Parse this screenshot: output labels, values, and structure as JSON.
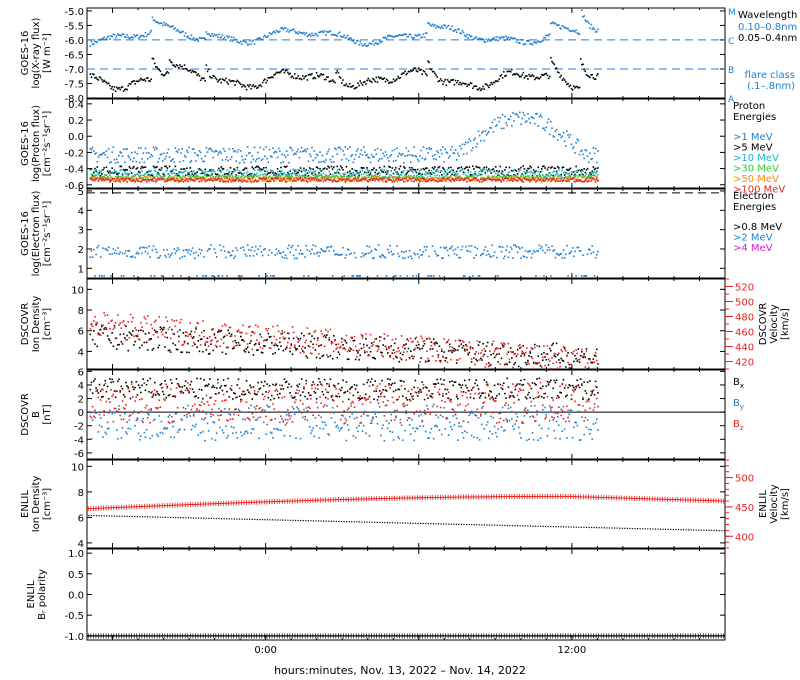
{
  "colors": {
    "black": "#000000",
    "blue": "#1f7fd0",
    "cyan": "#13b7c9",
    "green": "#33cc33",
    "orange": "#ff8800",
    "red": "#e8221c",
    "magenta": "#d61cd6"
  },
  "x_axis": {
    "range_hours": [
      -7,
      18
    ],
    "ticks": [
      {
        "h": 0,
        "label": "0:00"
      },
      {
        "h": 12,
        "label": "12:00"
      }
    ],
    "title": "hours:minutes, Nov. 13, 2022 – Nov. 14, 2022",
    "data_end_hours": 13.0
  },
  "chart_data": [
    {
      "id": "xray",
      "type": "scatter",
      "ylabel_lines": [
        "GOES-16",
        "log(X-ray flux)",
        "[W m⁻²]"
      ],
      "ylim": [
        -8.0,
        -4.9
      ],
      "yticks": [
        "-5.0",
        "-5.5",
        "-6.0",
        "-6.5",
        "-7.0",
        "-7.5",
        "-8.0"
      ],
      "ytick_values": [
        -5.0,
        -5.5,
        -6.0,
        -6.5,
        -7.0,
        -7.5,
        -8.0
      ],
      "flare_lines": [
        {
          "value": -6.0,
          "label": "C"
        },
        {
          "value": -7.0,
          "label": "B"
        }
      ],
      "flare_marks": [
        {
          "value": -5.0,
          "label": "M"
        },
        {
          "value": -8.0,
          "label": "A"
        }
      ],
      "legend": {
        "title": "Wavelength",
        "entries": [
          {
            "text": "0.10–0.8nm",
            "color": "#1f7fd0"
          },
          {
            "text": "0.05–0.4nm",
            "color": "#000000"
          }
        ],
        "flare_class": [
          "flare class",
          "(.1–.8nm)"
        ]
      },
      "series": [
        {
          "name": "0.10–0.8nm",
          "color": "#1f7fd0",
          "base": -5.85,
          "noise": 0.08,
          "bursts": [
            [
              -4.5,
              0.55
            ],
            [
              -2.4,
              0.35
            ],
            [
              6.3,
              0.4
            ],
            [
              11.1,
              0.45
            ],
            [
              12.3,
              0.85
            ]
          ],
          "waves": [
            [
              0.18,
              5.5
            ],
            [
              0.1,
              2.2
            ]
          ]
        },
        {
          "name": "0.05–0.4nm",
          "color": "#000000",
          "base": -7.35,
          "noise": 0.1,
          "bursts": [
            [
              -4.5,
              0.8
            ],
            [
              -3.8,
              0.5
            ],
            [
              -2.4,
              0.55
            ],
            [
              2.7,
              0.5
            ],
            [
              6.3,
              0.55
            ],
            [
              11.1,
              0.6
            ],
            [
              12.3,
              1.0
            ]
          ],
          "waves": [
            [
              0.22,
              4.5
            ],
            [
              0.12,
              1.8
            ]
          ]
        }
      ]
    },
    {
      "id": "proton",
      "type": "scatter",
      "ylabel_lines": [
        "GOES-16",
        "log(Proton flux)",
        "[cm⁻²s⁻¹sr⁻¹]"
      ],
      "ylim": [
        -0.64,
        0.46
      ],
      "yticks": [
        "0.4",
        "0.2",
        "0.0",
        "-0.2",
        "-0.4",
        "-0.6"
      ],
      "ytick_values": [
        0.4,
        0.2,
        0.0,
        -0.2,
        -0.4,
        -0.6
      ],
      "legend": {
        "title": [
          "Proton",
          "Energies"
        ],
        "entries": [
          {
            "text": ">1 MeV",
            "color": "#1f7fd0"
          },
          {
            "text": ">5 MeV",
            "color": "#000000"
          },
          {
            "text": ">10 MeV",
            "color": "#13b7c9"
          },
          {
            "text": ">30 MeV",
            "color": "#33cc33"
          },
          {
            "text": ">50 MeV",
            "color": "#ff8800"
          },
          {
            "text": ">100 MeV",
            "color": "#e8221c"
          }
        ]
      },
      "series": [
        {
          "name": ">1 MeV",
          "color": "#1f7fd0",
          "base": -0.22,
          "noise": 0.1,
          "rise": [
            7.5,
            10.5,
            0.45
          ]
        },
        {
          "name": ">5 MeV",
          "color": "#000000",
          "base": -0.42,
          "noise": 0.06
        },
        {
          "name": ">10 MeV",
          "color": "#13b7c9",
          "base": -0.45,
          "noise": 0.05
        },
        {
          "name": ">30 MeV",
          "color": "#33cc33",
          "base": -0.5,
          "noise": 0.03
        },
        {
          "name": ">50 MeV",
          "color": "#ff8800",
          "base": -0.52,
          "noise": 0.03
        },
        {
          "name": ">100 MeV",
          "color": "#e8221c",
          "base": -0.53,
          "noise": 0.025
        }
      ]
    },
    {
      "id": "electron",
      "type": "scatter",
      "ylabel_lines": [
        "GOES-16",
        "log(Electron flux)",
        "[cm⁻²s⁻¹sr⁻¹]"
      ],
      "ylim": [
        0.5,
        5.1
      ],
      "yticks": [
        "5",
        "4",
        "3",
        "2",
        "1"
      ],
      "ytick_values": [
        5,
        4,
        3,
        2,
        1
      ],
      "dashed_line": 4.9,
      "legend": {
        "title": [
          "Electron",
          "Energies"
        ],
        "entries": [
          {
            "text": ">0.8 MeV",
            "color": "#000000"
          },
          {
            "text": ">2 MeV",
            "color": "#1f7fd0"
          },
          {
            "text": ">4 MeV",
            "color": "#d61cd6"
          }
        ]
      },
      "series": [
        {
          "name": ">2 MeV",
          "color": "#1f7fd0",
          "base": 1.9,
          "noise": 0.35,
          "floor": 0.65
        }
      ]
    },
    {
      "id": "dscovr_density",
      "type": "scatter",
      "ylabel_lines": [
        "DSCOVR",
        "Ion Density",
        "[cm⁻³]"
      ],
      "ylim": [
        2.3,
        11
      ],
      "yticks": [
        "10",
        "8",
        "6",
        "4"
      ],
      "ytick_values": [
        10,
        8,
        6,
        4
      ],
      "ylabel_right_lines": [
        "DSCOVR",
        "Velocity",
        "[km/s]"
      ],
      "ylim_right": [
        410,
        530
      ],
      "yticks_right": [
        "520",
        "500",
        "480",
        "460",
        "440",
        "420"
      ],
      "ytick_values_right": [
        520,
        500,
        480,
        460,
        440,
        420
      ],
      "series": [
        {
          "name": "density",
          "color": "#000000",
          "axis": "left",
          "base": 5.5,
          "noise": 1.2,
          "trend": -0.1
        },
        {
          "name": "velocity",
          "color": "#e8221c",
          "axis": "right",
          "base": 470,
          "noise": 18,
          "trend": -2.5
        }
      ]
    },
    {
      "id": "dscovr_b",
      "type": "scatter",
      "ylabel_lines": [
        "DSCOVR",
        "B",
        "[nT]"
      ],
      "ylim": [
        -6.9,
        6.2
      ],
      "yticks": [
        "6",
        "4",
        "2",
        "0",
        "-2",
        "-4",
        "-6"
      ],
      "ytick_values": [
        6,
        4,
        2,
        0,
        -2,
        -4,
        -6
      ],
      "zero_line": 0,
      "legend": {
        "entries": [
          {
            "text": "B",
            "sub": "x",
            "color": "#000000"
          },
          {
            "text": "B",
            "sub": "y",
            "color": "#1f7fd0"
          },
          {
            "text": "B",
            "sub": "z",
            "color": "#e8221c"
          }
        ]
      },
      "series": [
        {
          "name": "Bx",
          "color": "#000000",
          "base": 3.5,
          "noise": 1.6
        },
        {
          "name": "By",
          "color": "#1f7fd0",
          "base": -1.5,
          "noise": 2.6
        },
        {
          "name": "Bz",
          "color": "#e8221c",
          "base": 1.5,
          "noise": 3.0
        }
      ]
    },
    {
      "id": "enlil_density",
      "type": "line",
      "ylabel_lines": [
        "ENLIL",
        "Ion Density",
        "[cm⁻³]"
      ],
      "ylim": [
        3.6,
        10.5
      ],
      "yticks": [
        "10",
        "8",
        "6",
        "4"
      ],
      "ytick_values": [
        10,
        8,
        6,
        4
      ],
      "ylabel_right_lines": [
        "ENLIL",
        "Velocity",
        "[km/s]"
      ],
      "ylim_right": [
        380,
        530
      ],
      "yticks_right": [
        "500",
        "450",
        "400"
      ],
      "ytick_values_right": [
        500,
        450,
        400
      ],
      "density_start": 6.2,
      "density_end": 5.0,
      "velocity_start": 447,
      "velocity_peak": 468,
      "velocity_end": 460
    },
    {
      "id": "enlil_polarity",
      "type": "line",
      "ylabel_lines": [
        "ENLIL",
        "Bᵣ polarity"
      ],
      "ylim": [
        -1.1,
        1.1
      ],
      "yticks": [
        "1.0",
        "0.5",
        "0.0",
        "-0.5",
        "-1.0"
      ],
      "ytick_values": [
        1.0,
        0.5,
        0.0,
        -0.5,
        -1.0
      ],
      "value": -1.0
    }
  ]
}
